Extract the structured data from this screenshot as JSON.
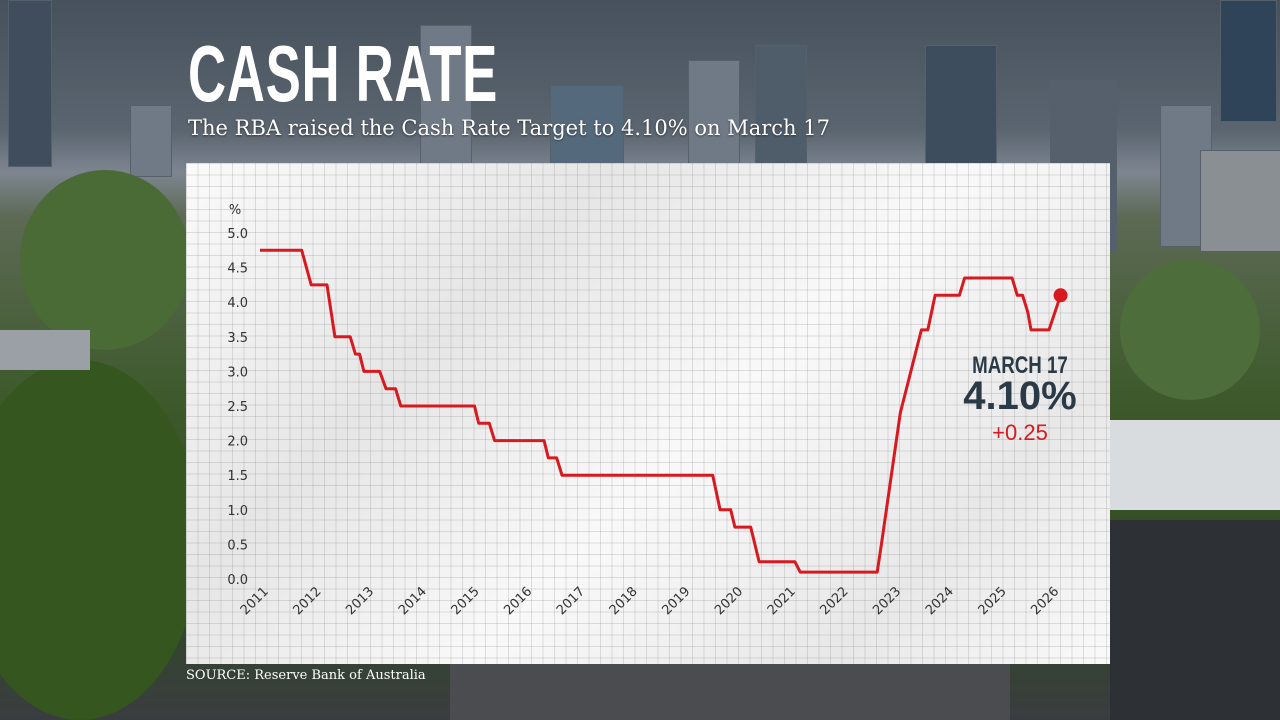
{
  "header": {
    "title": "CASH RATE",
    "subtitle": "The RBA raised the Cash Rate Target to 4.10% on March 17"
  },
  "source": "SOURCE: Reserve Bank of Australia",
  "annotation": {
    "date": "MARCH 17",
    "value": "4.10%",
    "change": "+0.25"
  },
  "colors": {
    "line": "#d71920",
    "annotation_text": "#2b3a47",
    "change_text": "#d71920"
  },
  "chart_data": {
    "type": "line",
    "title": "CASH RATE",
    "ylabel": "%",
    "xlabel": "",
    "ylim": [
      0,
      5
    ],
    "xlim": [
      2011,
      2026
    ],
    "grid": true,
    "y_ticks": [
      "0.0",
      "0.5",
      "1.0",
      "1.5",
      "2.0",
      "2.5",
      "3.0",
      "3.5",
      "4.0",
      "4.5",
      "5.0"
    ],
    "x_ticks": [
      "2011",
      "2012",
      "2013",
      "2014",
      "2015",
      "2016",
      "2017",
      "2018",
      "2019",
      "2020",
      "2021",
      "2022",
      "2023",
      "2024",
      "2025",
      "2026"
    ],
    "series": [
      {
        "points": [
          [
            2010.83,
            4.75
          ],
          [
            2011.62,
            4.75
          ],
          [
            2011.8,
            4.25
          ],
          [
            2012.1,
            4.25
          ],
          [
            2012.25,
            3.5
          ],
          [
            2012.54,
            3.5
          ],
          [
            2012.64,
            3.25
          ],
          [
            2012.72,
            3.25
          ],
          [
            2012.8,
            3.0
          ],
          [
            2013.1,
            3.0
          ],
          [
            2013.22,
            2.75
          ],
          [
            2013.4,
            2.75
          ],
          [
            2013.5,
            2.5
          ],
          [
            2014.9,
            2.5
          ],
          [
            2014.98,
            2.25
          ],
          [
            2015.18,
            2.25
          ],
          [
            2015.28,
            2.0
          ],
          [
            2016.22,
            2.0
          ],
          [
            2016.3,
            1.75
          ],
          [
            2016.46,
            1.75
          ],
          [
            2016.56,
            1.5
          ],
          [
            2019.42,
            1.5
          ],
          [
            2019.56,
            1.0
          ],
          [
            2019.76,
            1.0
          ],
          [
            2019.84,
            0.75
          ],
          [
            2020.14,
            0.75
          ],
          [
            2020.3,
            0.25
          ],
          [
            2020.98,
            0.25
          ],
          [
            2021.08,
            0.1
          ],
          [
            2022.54,
            0.1
          ],
          [
            2022.62,
            0.5
          ],
          [
            2022.98,
            2.4
          ],
          [
            2023.38,
            3.6
          ],
          [
            2023.5,
            3.6
          ],
          [
            2023.64,
            4.1
          ],
          [
            2024.1,
            4.1
          ],
          [
            2024.2,
            4.35
          ],
          [
            2025.1,
            4.35
          ],
          [
            2025.2,
            4.1
          ],
          [
            2025.3,
            4.1
          ],
          [
            2025.4,
            3.85
          ],
          [
            2025.46,
            3.6
          ],
          [
            2025.8,
            3.6
          ],
          [
            2026.02,
            4.1
          ]
        ]
      }
    ]
  }
}
